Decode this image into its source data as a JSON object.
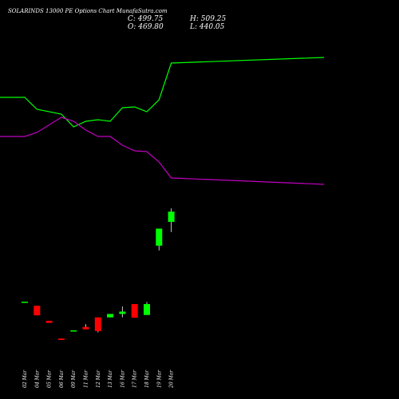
{
  "header": {
    "title": "SOLARINDS 13000  PE Options  Chart MunafaSutra.com",
    "close_label": "C: 499.75",
    "high_label": "H: 509.25",
    "open_label": "O: 469.80",
    "low_label": "L: 440.05"
  },
  "colors": {
    "background": "#000000",
    "up": "#00ff00",
    "down": "#ff0000",
    "green_line": "#00ff00",
    "magenta_line": "#c000c0",
    "text": "#ffffff"
  },
  "chart_data": {
    "type": "candlestick",
    "categories": [
      "02 Mar",
      "04 Mar",
      "05 Mar",
      "06 Mar",
      "09 Mar",
      "11 Mar",
      "12 Mar",
      "13 Mar",
      "16 Mar",
      "17 Mar",
      "18 Mar",
      "19 Mar",
      "20 Mar"
    ],
    "candles": [
      {
        "date": "02 Mar",
        "open": 235.0,
        "high": 235.0,
        "low": 235.0,
        "close": 236.0
      },
      {
        "date": "04 Mar",
        "open": 224.0,
        "high": 224.0,
        "low": 196.0,
        "close": 196.0
      },
      {
        "date": "05 Mar",
        "open": 180.0,
        "high": 180.0,
        "low": 174.0,
        "close": 174.0
      },
      {
        "date": "06 Mar",
        "open": 128.0,
        "high": 128.0,
        "low": 124.0,
        "close": 124.0
      },
      {
        "date": "09 Mar",
        "open": 150.0,
        "high": 152.0,
        "low": 150.0,
        "close": 152.0
      },
      {
        "date": "11 Mar",
        "open": 162.0,
        "high": 170.0,
        "low": 155.0,
        "close": 155.0
      },
      {
        "date": "12 Mar",
        "open": 190.0,
        "high": 190.0,
        "low": 146.0,
        "close": 150.0
      },
      {
        "date": "13 Mar",
        "open": 190.0,
        "high": 200.0,
        "low": 190.0,
        "close": 200.0
      },
      {
        "date": "16 Mar",
        "open": 200.0,
        "high": 222.0,
        "low": 190.0,
        "close": 207.0
      },
      {
        "date": "17 Mar",
        "open": 229.0,
        "high": 229.0,
        "low": 189.0,
        "close": 189.0
      },
      {
        "date": "18 Mar",
        "open": 197.0,
        "high": 235.0,
        "low": 197.0,
        "close": 229.0
      },
      {
        "date": "19 Mar",
        "open": 400.0,
        "high": 450.0,
        "low": 386.0,
        "close": 450.0
      },
      {
        "date": "20 Mar",
        "open": 469.8,
        "high": 509.25,
        "low": 440.05,
        "close": 499.75
      }
    ],
    "lines": [
      {
        "color": "#00ff00",
        "x": [
          "start",
          "02 Mar",
          "04 Mar",
          "06 Mar",
          "09 Mar",
          "11 Mar",
          "12 Mar",
          "13 Mar",
          "16 Mar",
          "17 Mar",
          "18 Mar",
          "19 Mar",
          "20 Mar",
          "end"
        ],
        "y": [
          122,
          122,
          137,
          143,
          159,
          152,
          150,
          152,
          135,
          134,
          140,
          125,
          79,
          72
        ]
      },
      {
        "color": "#c000c0",
        "x": [
          "start",
          "02 Mar",
          "04 Mar",
          "06 Mar",
          "09 Mar",
          "11 Mar",
          "12 Mar",
          "13 Mar",
          "16 Mar",
          "17 Mar",
          "18 Mar",
          "19 Mar",
          "20 Mar",
          "end"
        ],
        "y": [
          171,
          171,
          166,
          147,
          152,
          163,
          171,
          171,
          182,
          189,
          190,
          203,
          223,
          231
        ]
      }
    ],
    "grid": false
  }
}
